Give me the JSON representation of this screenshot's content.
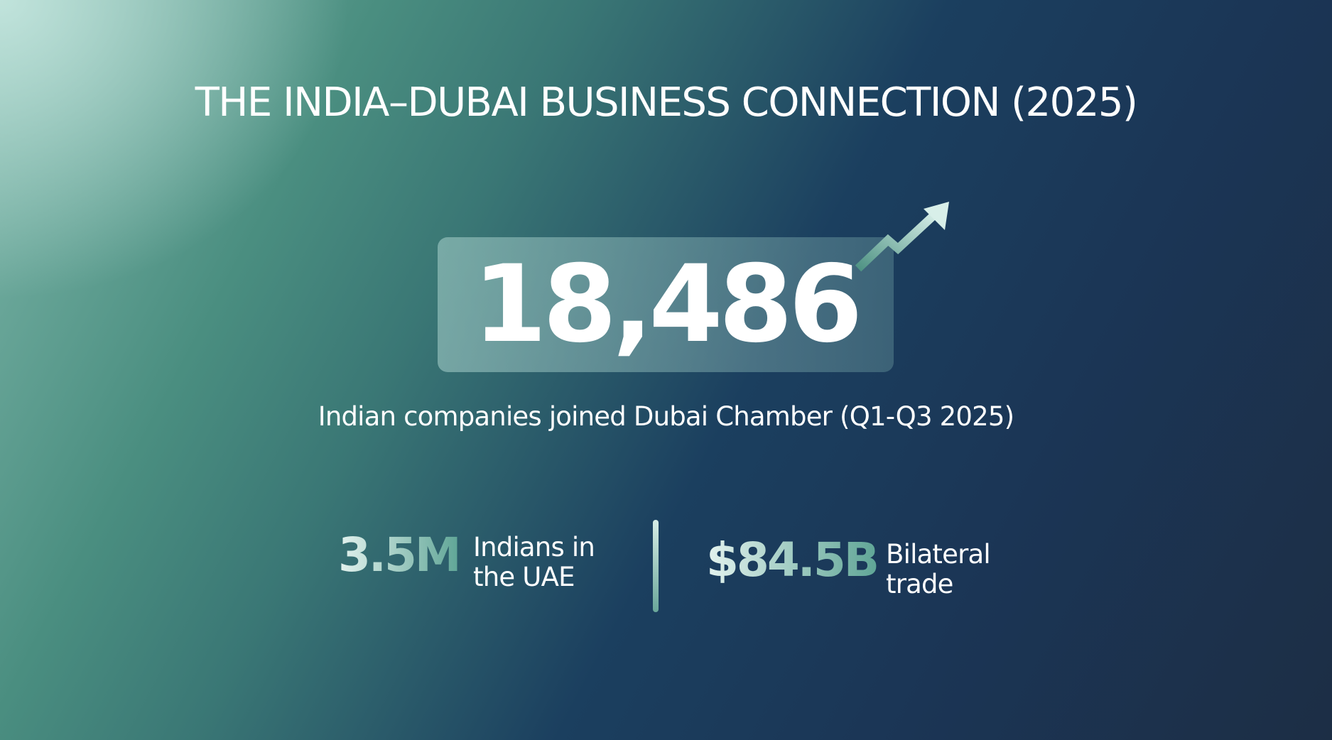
{
  "title": "THE INDIA–DUBAI BUSINESS CONNECTION (2025)",
  "headline": {
    "value": "18,486",
    "caption": "Indian companies joined Dubai Chamber (Q1-Q3 2025)"
  },
  "stats": [
    {
      "value": "3.5M",
      "label": [
        "Indians in",
        "the UAE"
      ]
    },
    {
      "value": "$84.5B",
      "label": [
        "Bilateral",
        "trade"
      ]
    }
  ]
}
